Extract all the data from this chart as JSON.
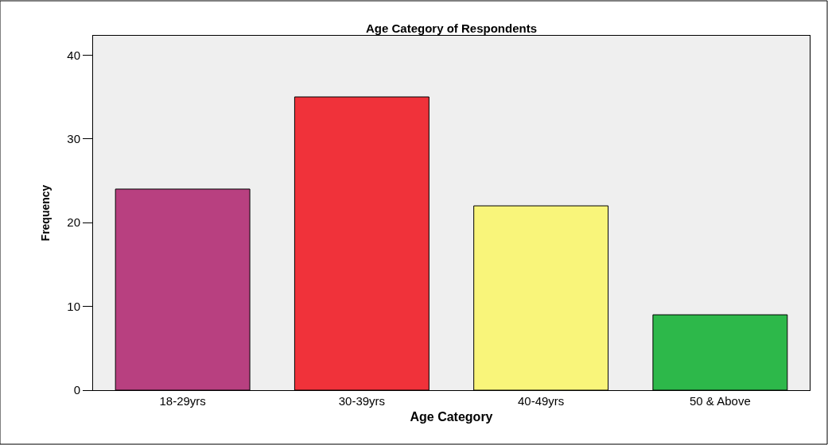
{
  "chart_data": {
    "type": "bar",
    "title": "Age Category of Respondents",
    "xlabel": "Age Category",
    "ylabel": "Frequency",
    "categories": [
      "18-29yrs",
      "30-39yrs",
      "40-49yrs",
      "50 & Above"
    ],
    "values": [
      24,
      35,
      22,
      9
    ],
    "colors": [
      "#b84080",
      "#f0323a",
      "#f9f57a",
      "#2db84a"
    ],
    "ylim": [
      0,
      42.3
    ],
    "yticks": [
      0,
      10,
      20,
      30,
      40
    ],
    "grid": false
  }
}
